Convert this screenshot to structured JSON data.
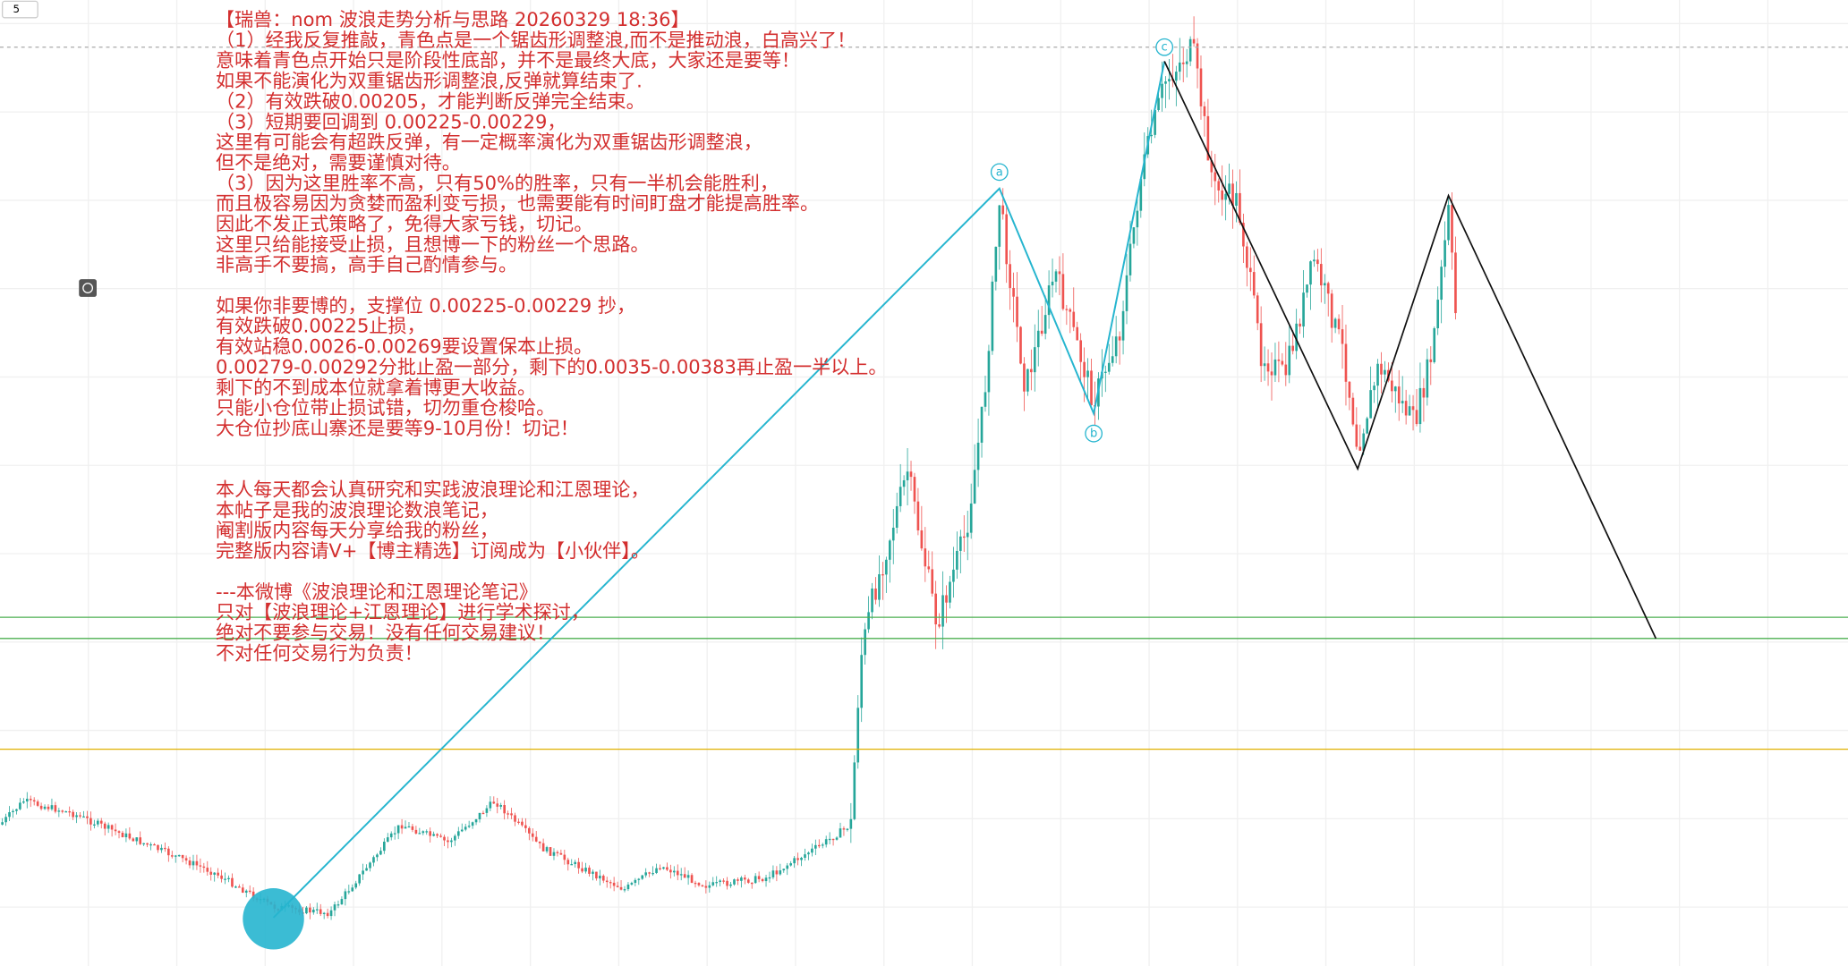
{
  "toolbar": {
    "interval": "5"
  },
  "annotation": {
    "paragraphs": [
      [
        "【瑞兽：nom 波浪走势分析与思路 20260329 18:36】",
        "（1）经我反复推敲，青色点是一个锯齿形调整浪,而不是推动浪，白高兴了！",
        "意味着青色点开始只是阶段性底部，并不是最终大底，大家还是要等！",
        "如果不能演化为双重锯齿形调整浪,反弹就算结束了.",
        "（2）有效跌破0.00205，才能判断反弹完全结束。",
        "（3）短期要回调到 0.00225-0.00229，",
        "这里有可能会有超跌反弹，有一定概率演化为双重锯齿形调整浪，",
        "但不是绝对，需要谨慎对待。",
        "（3）因为这里胜率不高，只有50%的胜率，只有一半机会能胜利，",
        "而且极容易因为贪婪而盈利变亏损，也需要能有时间盯盘才能提高胜率。",
        "因此不发正式策略了，免得大家亏钱，切记。",
        "这里只给能接受止损，且想博一下的粉丝一个思路。",
        "非高手不要搞，高手自己酌情参与。"
      ],
      [
        "如果你非要博的，支撑位 0.00225-0.00229 抄，",
        "有效跌破0.00225止损，",
        "有效站稳0.0026-0.00269要设置保本止损。",
        "0.00279-0.00292分批止盈一部分，剩下的0.0035-0.00383再止盈一半以上。",
        "剩下的不到成本位就拿着博更大收益。",
        "只能小仓位带止损试错，切勿重仓梭哈。",
        "大仓位抄底山寨还是要等9-10月份！切记！"
      ],
      [
        "本人每天都会认真研究和实践波浪理论和江恩理论，",
        "本帖子是我的波浪理论数浪笔记，",
        "阉割版内容每天分享给我的粉丝，",
        "完整版内容请V+【博主精选】订阅成为【小伙伴】。"
      ],
      [
        "---本微博《波浪理论和江恩理论笔记》",
        "只对【波浪理论+江恩理论】进行学术探讨，",
        "绝对不要参与交易！没有任何交易建议！",
        "不对任何交易行为负责！"
      ]
    ]
  },
  "wave_labels": [
    "a",
    "b",
    "c"
  ]
}
